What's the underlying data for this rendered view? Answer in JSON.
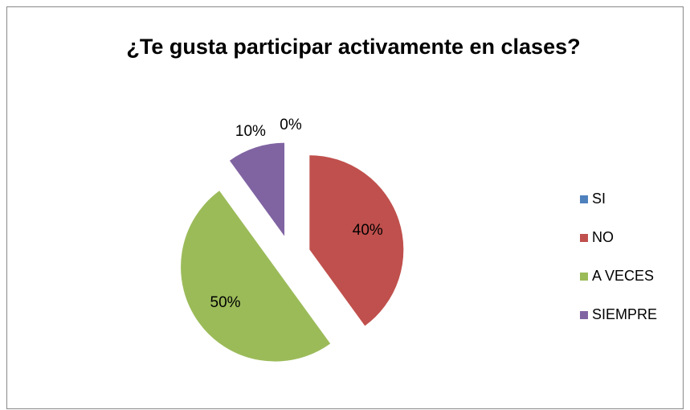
{
  "chart_data": {
    "type": "pie",
    "title": "¿Te gusta participar activamente en clases?",
    "categories": [
      "SI",
      "NO",
      "A VECES",
      "SIEMPRE"
    ],
    "values": [
      0,
      40,
      50,
      10
    ],
    "value_labels": [
      "0%",
      "40%",
      "50%",
      "10%"
    ],
    "colors": [
      "#4f81bd",
      "#c0504d",
      "#9bbb59",
      "#8064a2"
    ],
    "legend": "right"
  }
}
